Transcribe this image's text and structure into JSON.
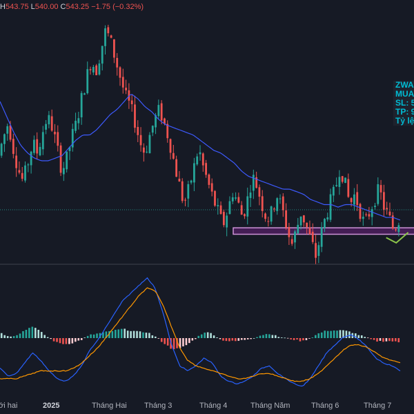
{
  "ohlc": {
    "h_label": "H",
    "h_value": "543.75",
    "l_label": "L",
    "l_value": "540.00",
    "c_label": "C",
    "c_value": "543.25",
    "change": "−1.75 (−0.32%)"
  },
  "info_box": {
    "line1": "ZWA",
    "line2": "MUA",
    "line3": "SL: 5",
    "line4": "TP: 9",
    "line5": "Tỷ lệ"
  },
  "x_axis": {
    "labels": [
      "ới hai",
      "2025",
      "Tháng Hai",
      "Tháng 3",
      "Tháng 4",
      "Tháng Năm",
      "Tháng 6",
      "Tháng 7"
    ]
  },
  "colors": {
    "background": "#161a25",
    "up": "#26a69a",
    "down": "#ef5350",
    "ma": "#3d5afe",
    "macd": "#2962ff",
    "signal": "#ff9800",
    "zone": "#9c27b0",
    "projection": "#8bc34a"
  },
  "chart_data": {
    "type": "candlestick",
    "price_path": [
      525,
      532,
      538,
      528,
      520,
      515,
      522,
      530,
      526,
      534,
      540,
      536,
      528,
      519,
      524,
      532,
      538,
      547,
      555,
      562,
      558,
      566,
      574,
      569,
      562,
      555,
      548,
      544,
      538,
      530,
      526,
      533,
      539,
      543,
      537,
      531,
      522,
      514,
      506,
      512,
      520,
      528,
      520,
      514,
      508,
      503,
      498,
      504,
      511,
      507,
      501,
      508,
      517,
      513,
      506,
      500,
      503,
      510,
      505,
      498,
      490,
      496,
      503,
      498,
      492,
      486,
      494,
      501,
      507,
      512,
      521,
      514,
      506,
      510,
      504,
      498,
      503,
      508,
      512,
      505,
      501,
      496,
      500
    ],
    "ma_path": [
      546,
      540,
      534,
      529,
      526,
      524,
      523,
      523,
      524,
      525,
      528,
      531,
      533,
      533,
      535,
      538,
      541,
      543,
      546,
      549,
      547,
      544,
      542,
      539,
      537,
      536,
      535,
      534,
      533,
      531,
      529,
      527,
      526,
      524,
      522,
      519,
      517,
      516,
      515,
      514,
      513,
      512,
      512,
      511,
      510,
      508,
      507,
      506,
      506,
      505,
      506,
      506,
      505,
      504,
      503,
      502,
      501,
      501,
      500
    ],
    "support_zone": {
      "low": 494.5,
      "high": 497.0
    },
    "y_range": [
      485,
      580
    ],
    "macd_line": [
      -0.5,
      -0.8,
      -0.7,
      -0.3,
      0.1,
      -0.2,
      -0.6,
      -0.9,
      -1.0,
      -0.8,
      -0.4,
      0.2,
      0.6,
      1.1,
      1.6,
      2.1,
      2.4,
      2.7,
      3.0,
      2.6,
      1.6,
      0.4,
      -0.4,
      -0.6,
      -0.4,
      -0.1,
      -0.3,
      -0.8,
      -1.0,
      -1.1,
      -1.0,
      -0.8,
      -0.5,
      -0.4,
      -0.7,
      -0.9,
      -1.1,
      -1.2,
      -0.9,
      -0.4,
      0.1,
      0.4,
      0.7,
      0.8,
      0.6,
      0.3,
      -0.1,
      -0.3,
      -0.4,
      -0.6
    ],
    "signal_line": [
      -0.9,
      -0.9,
      -0.9,
      -0.8,
      -0.7,
      -0.6,
      -0.6,
      -0.6,
      -0.6,
      -0.5,
      -0.3,
      0.0,
      0.3,
      0.7,
      1.1,
      1.5,
      1.9,
      2.3,
      2.6,
      2.5,
      1.9,
      1.1,
      0.3,
      -0.2,
      -0.4,
      -0.5,
      -0.6,
      -0.7,
      -0.8,
      -0.9,
      -0.9,
      -0.8,
      -0.7,
      -0.7,
      -0.8,
      -0.9,
      -1.0,
      -1.0,
      -0.9,
      -0.7,
      -0.4,
      -0.1,
      0.2,
      0.4,
      0.4,
      0.3,
      0.1,
      -0.1,
      -0.2,
      -0.3
    ],
    "macd_range": [
      -1.6,
      3.2
    ],
    "projection": [
      {
        "t": 0.965,
        "p": 498
      },
      {
        "t": 0.99,
        "p": 496
      },
      {
        "t": 1.02,
        "p": 500
      }
    ],
    "xlabel": "",
    "ylabel": ""
  }
}
